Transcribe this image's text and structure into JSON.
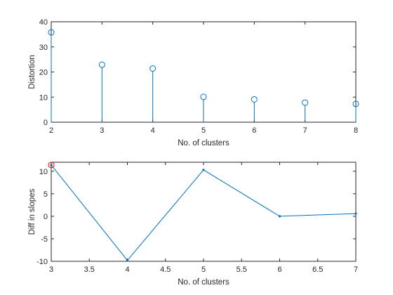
{
  "figure": {
    "background": "#ffffff",
    "axis_color": "#262626",
    "series_color": "#0072bd",
    "highlight_color": "#ff0000"
  },
  "chart_data": [
    {
      "type": "stem",
      "xlabel": "No. of clusters",
      "ylabel": "Distortion",
      "xlim": [
        2,
        8
      ],
      "ylim": [
        0,
        40
      ],
      "xticks": [
        2,
        3,
        4,
        5,
        6,
        7,
        8
      ],
      "yticks": [
        0,
        10,
        20,
        30,
        40
      ],
      "grid": false,
      "series": [
        {
          "x": [
            2,
            3,
            4,
            5,
            6,
            7,
            8
          ],
          "y": [
            35.8,
            22.9,
            21.4,
            10.1,
            9.1,
            7.8,
            7.3
          ],
          "marker": "circle-open",
          "color": "#0072bd"
        }
      ]
    },
    {
      "type": "line",
      "xlabel": "No. of clusters",
      "ylabel": "Diff in slopes",
      "xlim": [
        3,
        7
      ],
      "ylim": [
        -10,
        12
      ],
      "xticks": [
        3,
        3.5,
        4,
        4.5,
        5,
        5.5,
        6,
        6.5,
        7
      ],
      "yticks": [
        -10,
        -5,
        0,
        5,
        10
      ],
      "grid": false,
      "series": [
        {
          "x": [
            3,
            4,
            5,
            6,
            7
          ],
          "y": [
            11.4,
            -9.8,
            10.3,
            0.0,
            0.6
          ],
          "marker": "dot",
          "color": "#0072bd"
        }
      ],
      "highlight": {
        "x": 3,
        "y": 11.4,
        "marker": "circle-open",
        "color": "#ff0000"
      }
    }
  ]
}
